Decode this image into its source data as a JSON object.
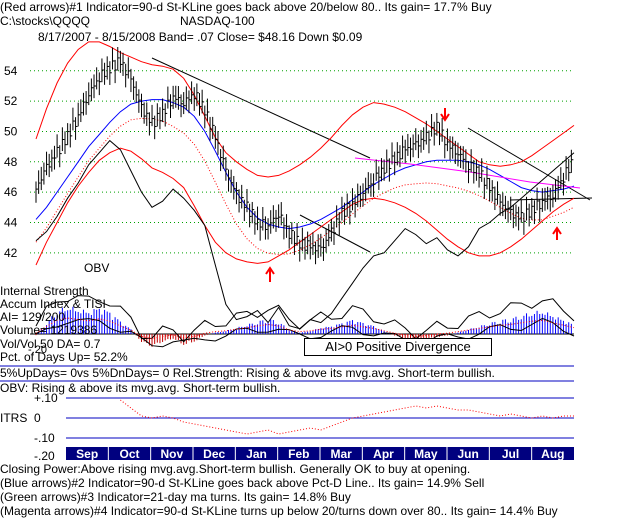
{
  "header": {
    "line1": "(Red arrows)#1 Indicator=90-d St-KLine goes back above 20/below 80.. Its gain= 17.7% Buy",
    "path": "C:\\stocks\\QQQQ",
    "index_name": "NASDAQ-100",
    "stats": "8/17/2007 - 8/15/2008  Band= .07   Close= $48.16    Down $0.09"
  },
  "panel_labels": {
    "obv": "OBV",
    "internal_strength": "Internal Strength",
    "accum_index": "Accum Index & TISI",
    "ai": "AI= 129/200",
    "volume": "Volume= 1219386",
    "vol_ratio": "Vol/Vol 50 DA= 0.7",
    "pct_up_days": "Pct. of Days Up= 52.2%",
    "up_down_days": "5%UpDays= 0vs 5%DnDays= 0   Rel.Strength: Rising & above its mvg.avg. Short-term bullish.",
    "obv_status": "OBV: Rising & above its mvg.avg. Short-term bullish.",
    "itrs": "ITRS",
    "divergence": "AI>0 Positive Divergence",
    "acc_zero": "-.20"
  },
  "footer": {
    "line1": "Closing Power:Above rising mvg.avg.Short-term bullish. Generally OK to buy at opening.",
    "line2": "(Blue arrows)#2 Indicator=90-d St-KLine goes back above Pct-D Line.. Its gain= 14.9% Sell",
    "line3": "(Green arrows)#3 Indicator=21-day ma turns. Its gain= 14.8% Buy",
    "line4": "(Magenta arrows)#4 Indicator=90-d St-KLine turns up below 20/turns down over 80.. Its gain= 14.4% Buy"
  },
  "colors": {
    "price_bars": "#000000",
    "band": "#ff0000",
    "ma_blue": "#0000ff",
    "ma_red_dotted": "#ff0000",
    "magenta": "#ff00ff",
    "grid_green": "#00a000",
    "accum_pos": "#0000ff",
    "accum_neg": "#c00000",
    "itrs_line": "#ff0000",
    "ref_line_blue": "#0000c0"
  },
  "chart_data": {
    "type": "line",
    "y_ticks": [
      42,
      44,
      46,
      48,
      50,
      52,
      54
    ],
    "ylim": [
      41,
      55.5
    ],
    "months": [
      "Sep",
      "Oct",
      "Nov",
      "Dec",
      "Jan",
      "Feb",
      "Mar",
      "Apr",
      "May",
      "Jun",
      "Jul",
      "Aug"
    ],
    "price_close": [
      46.2,
      47.6,
      48.6,
      49.7,
      51.0,
      52.5,
      53.6,
      54.2,
      54.6,
      53.4,
      51.5,
      50.5,
      51.2,
      52.3,
      51.9,
      52.5,
      51.4,
      49.6,
      47.4,
      45.8,
      45.0,
      44.0,
      43.8,
      44.6,
      43.3,
      42.6,
      42.4,
      42.2,
      43.3,
      44.6,
      45.2,
      46.0,
      46.8,
      47.6,
      48.2,
      48.8,
      49.1,
      49.6,
      50.3,
      49.2,
      48.6,
      47.8,
      47.3,
      46.3,
      45.3,
      44.6,
      44.3,
      44.8,
      45.4,
      45.8,
      47.0,
      48.16
    ],
    "band_upper": [
      49.5,
      51.5,
      53.2,
      54.5,
      55.4,
      55.9,
      55.9,
      55.6,
      55.2,
      54.9,
      54.6,
      54.4,
      54.3,
      54.1,
      53.5,
      52.4,
      51.0,
      49.6,
      48.6,
      48.0,
      47.5,
      47.1,
      47.0,
      47.1,
      47.4,
      47.8,
      48.3,
      48.9,
      49.6,
      50.4,
      51.1,
      51.6,
      51.9,
      51.8,
      51.6,
      51.3,
      50.9,
      50.5,
      50.0,
      49.5,
      49.0,
      48.5,
      48.0,
      47.8,
      47.7,
      47.8,
      48.0,
      48.4,
      48.9,
      49.4,
      49.9,
      50.4
    ],
    "band_lower": [
      41.2,
      42.7,
      44.0,
      45.3,
      46.4,
      47.3,
      48.1,
      48.6,
      48.9,
      48.7,
      48.2,
      47.6,
      47.3,
      46.9,
      46.3,
      45.1,
      43.8,
      42.7,
      42.0,
      41.6,
      41.4,
      41.3,
      41.4,
      41.8,
      42.2,
      42.7,
      43.2,
      43.7,
      44.2,
      44.7,
      45.2,
      45.5,
      45.6,
      45.5,
      45.3,
      45.0,
      44.6,
      44.1,
      43.5,
      42.9,
      42.4,
      42.0,
      41.8,
      41.8,
      42.0,
      42.4,
      42.9,
      43.5,
      44.1,
      44.7,
      45.2,
      45.6
    ],
    "ma_blue": [
      44.2,
      45.0,
      46.0,
      47.0,
      48.0,
      49.0,
      49.8,
      50.6,
      51.3,
      51.8,
      52.0,
      52.1,
      52.1,
      51.9,
      51.6,
      51.0,
      50.0,
      48.7,
      47.3,
      46.0,
      45.0,
      44.3,
      43.9,
      43.7,
      43.6,
      43.7,
      43.9,
      44.2,
      44.6,
      45.0,
      45.5,
      46.0,
      46.5,
      46.9,
      47.3,
      47.6,
      47.8,
      48.0,
      48.1,
      48.1,
      48.1,
      48.0,
      47.8,
      47.5,
      47.1,
      46.7,
      46.3,
      46.1,
      46.0,
      46.1,
      46.2,
      46.4
    ],
    "obv": [
      42.8,
      43.4,
      44.4,
      45.6,
      46.6,
      47.8,
      48.6,
      49.4,
      48.8,
      47.4,
      46.0,
      45.0,
      45.4,
      46.2,
      45.6,
      44.8,
      43.8,
      41.2,
      38.6,
      37.6,
      37.8,
      38.2,
      37.4,
      38.4,
      37.2,
      37.0,
      37.6,
      37.4,
      38.0,
      39.0,
      40.0,
      41.0,
      41.8,
      42.0,
      42.8,
      43.6,
      43.2,
      42.6,
      43.0,
      42.2,
      41.8,
      42.4,
      43.6,
      44.0,
      44.6,
      45.0,
      45.6,
      46.2,
      46.8,
      47.4,
      48.0,
      48.6
    ],
    "accum_index": [
      -0.2,
      1.5,
      3.0,
      3.6,
      3.2,
      2.9,
      3.4,
      2.8,
      1.6,
      0.6,
      -1.0,
      -1.6,
      -1.0,
      -0.6,
      -1.4,
      -1.0,
      -0.2,
      0.2,
      0.4,
      0.8,
      1.2,
      1.6,
      2.0,
      1.6,
      0.6,
      0.2,
      0.4,
      0.8,
      1.0,
      1.4,
      1.8,
      1.4,
      1.0,
      0.4,
      -0.2,
      -0.6,
      -1.0,
      -0.8,
      -0.4,
      -0.2,
      0.2,
      0.6,
      1.0,
      1.4,
      1.8,
      2.0,
      2.4,
      2.8,
      3.0,
      2.4,
      1.8,
      1.2
    ],
    "itrs": [
      0.0,
      0.0,
      0.0,
      0.0,
      0.0,
      0.0,
      0.0,
      0.0,
      0.09,
      0.05,
      0.01,
      0.0,
      0.01,
      0.0,
      -0.02,
      -0.03,
      -0.04,
      -0.05,
      -0.06,
      -0.07,
      -0.08,
      -0.07,
      -0.06,
      -0.08,
      -0.07,
      -0.06,
      -0.05,
      -0.06,
      -0.04,
      -0.02,
      0.0,
      0.01,
      0.02,
      0.03,
      0.04,
      0.05,
      0.06,
      0.05,
      0.06,
      0.05,
      0.04,
      0.04,
      0.03,
      0.02,
      0.01,
      0.02,
      0.01,
      0.0,
      0.01,
      0.0,
      0.01,
      0.01
    ],
    "itrs_ticks": [
      "+.10",
      "0",
      "-.10",
      "-.20"
    ],
    "itrs_ylim": [
      -0.2,
      0.15
    ]
  }
}
